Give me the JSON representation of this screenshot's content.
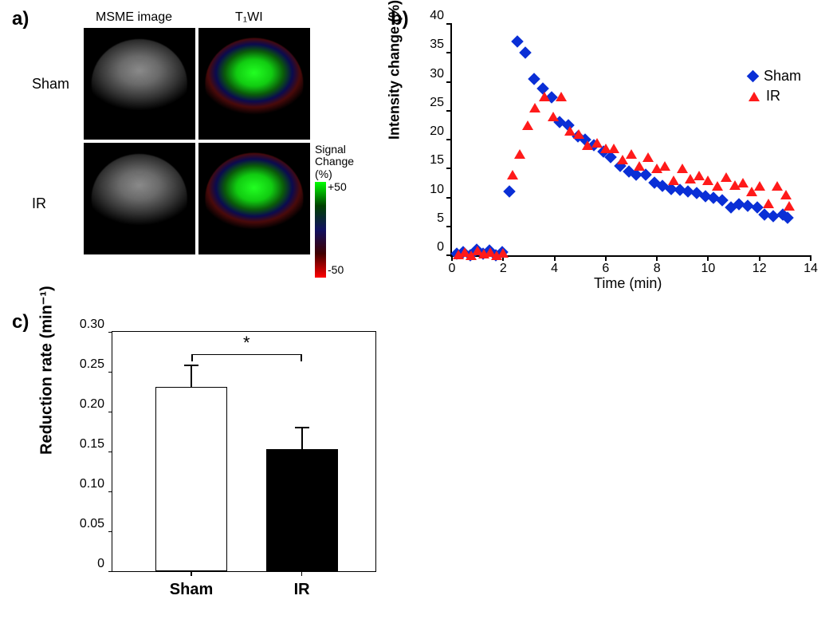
{
  "panel_labels": {
    "a": "a)",
    "b": "b)",
    "c": "c)"
  },
  "panel_a": {
    "col_headers": [
      "MSME image",
      "T1WI"
    ],
    "col_header_key1": "T₁WI",
    "row_headers": [
      "Sham",
      "IR"
    ],
    "colorbar": {
      "title_line1": "Signal",
      "title_line2": "Change",
      "title_line3": "(%)",
      "top_value": "+50",
      "bottom_value": "-50",
      "gradient_stops": [
        "#00ff00",
        "#004000",
        "#101060",
        "#400000",
        "#ff0000"
      ]
    },
    "t1wi_brain_gradient": "radial-gradient(ellipse 60% 48% at 50% 38%, #22ff22 0%, #11cc11 30%, #0a5a0a 50%, #0a0a50 65%, #4a0a0a 78%, #000 95%)"
  },
  "panel_b": {
    "type": "scatter",
    "x_title": "Time (min)",
    "y_title": "Intensity change (%)",
    "xlim": [
      0,
      14
    ],
    "ylim": [
      0,
      40
    ],
    "xtick_step": 2,
    "ytick_step": 5,
    "xtick_labels": [
      "0",
      "2",
      "4",
      "6",
      "8",
      "10",
      "12",
      "14"
    ],
    "ytick_labels": [
      "0",
      "5",
      "10",
      "15",
      "20",
      "25",
      "30",
      "35",
      "40"
    ],
    "series": [
      {
        "name": "Sham",
        "marker": "diamond",
        "color": "#0a2fd6",
        "points": [
          [
            0.2,
            0.3
          ],
          [
            0.45,
            0.5
          ],
          [
            0.7,
            0
          ],
          [
            0.95,
            1.0
          ],
          [
            1.2,
            0.3
          ],
          [
            1.45,
            0.8
          ],
          [
            1.7,
            0
          ],
          [
            1.95,
            0.5
          ],
          [
            2.25,
            11.0
          ],
          [
            2.55,
            37.0
          ],
          [
            2.85,
            35.0
          ],
          [
            3.2,
            30.5
          ],
          [
            3.55,
            28.8
          ],
          [
            3.9,
            27.3
          ],
          [
            4.2,
            23.0
          ],
          [
            4.55,
            22.5
          ],
          [
            4.9,
            20.5
          ],
          [
            5.2,
            20.0
          ],
          [
            5.55,
            19.0
          ],
          [
            5.9,
            18.0
          ],
          [
            6.2,
            17.0
          ],
          [
            6.55,
            15.5
          ],
          [
            6.9,
            14.5
          ],
          [
            7.2,
            14.0
          ],
          [
            7.55,
            14.0
          ],
          [
            7.9,
            12.5
          ],
          [
            8.2,
            12.0
          ],
          [
            8.55,
            11.5
          ],
          [
            8.9,
            11.3
          ],
          [
            9.2,
            11.0
          ],
          [
            9.55,
            10.7
          ],
          [
            9.9,
            10.2
          ],
          [
            10.2,
            10.0
          ],
          [
            10.55,
            9.5
          ],
          [
            10.9,
            8.3
          ],
          [
            11.2,
            8.8
          ],
          [
            11.55,
            8.5
          ],
          [
            11.9,
            8.3
          ],
          [
            12.2,
            7.0
          ],
          [
            12.55,
            6.8
          ],
          [
            12.9,
            7.0
          ],
          [
            13.1,
            6.5
          ]
        ]
      },
      {
        "name": "IR",
        "marker": "triangle",
        "color": "#ff1a1a",
        "points": [
          [
            0.25,
            0.2
          ],
          [
            0.5,
            0.6
          ],
          [
            0.75,
            0
          ],
          [
            1.0,
            0.8
          ],
          [
            1.25,
            0.3
          ],
          [
            1.5,
            0.6
          ],
          [
            1.75,
            0
          ],
          [
            2.0,
            0.4
          ],
          [
            2.35,
            14.0
          ],
          [
            2.65,
            17.5
          ],
          [
            2.95,
            22.5
          ],
          [
            3.25,
            25.5
          ],
          [
            3.6,
            27.5
          ],
          [
            3.95,
            24.0
          ],
          [
            4.25,
            27.5
          ],
          [
            4.6,
            21.5
          ],
          [
            4.95,
            21.0
          ],
          [
            5.3,
            19.0
          ],
          [
            5.65,
            19.5
          ],
          [
            6.0,
            18.5
          ],
          [
            6.3,
            18.5
          ],
          [
            6.65,
            16.5
          ],
          [
            7.0,
            17.5
          ],
          [
            7.3,
            15.5
          ],
          [
            7.65,
            17.0
          ],
          [
            8.0,
            15.0
          ],
          [
            8.3,
            15.5
          ],
          [
            8.65,
            13.0
          ],
          [
            9.0,
            15.0
          ],
          [
            9.3,
            13.2
          ],
          [
            9.65,
            13.8
          ],
          [
            10.0,
            13.0
          ],
          [
            10.35,
            12.0
          ],
          [
            10.7,
            13.5
          ],
          [
            11.05,
            12.2
          ],
          [
            11.35,
            12.5
          ],
          [
            11.7,
            11.0
          ],
          [
            12.0,
            12.0
          ],
          [
            12.35,
            9.0
          ],
          [
            12.7,
            12.0
          ],
          [
            13.05,
            10.5
          ],
          [
            13.15,
            8.5
          ]
        ]
      }
    ]
  },
  "panel_c": {
    "type": "bar",
    "y_title": "Reduction rate (min⁻¹)",
    "ylim": [
      0,
      0.3
    ],
    "ytick_step": 0.05,
    "ytick_labels": [
      "0",
      "0.05",
      "0.10",
      "0.15",
      "0.20",
      "0.25",
      "0.30"
    ],
    "bars": [
      {
        "label": "Sham",
        "value": 0.231,
        "error": 0.026,
        "fill": "#ffffff"
      },
      {
        "label": "IR",
        "value": 0.153,
        "error": 0.026,
        "fill": "#000000"
      }
    ],
    "significance": {
      "symbol": "*",
      "between": [
        0,
        1
      ]
    }
  }
}
